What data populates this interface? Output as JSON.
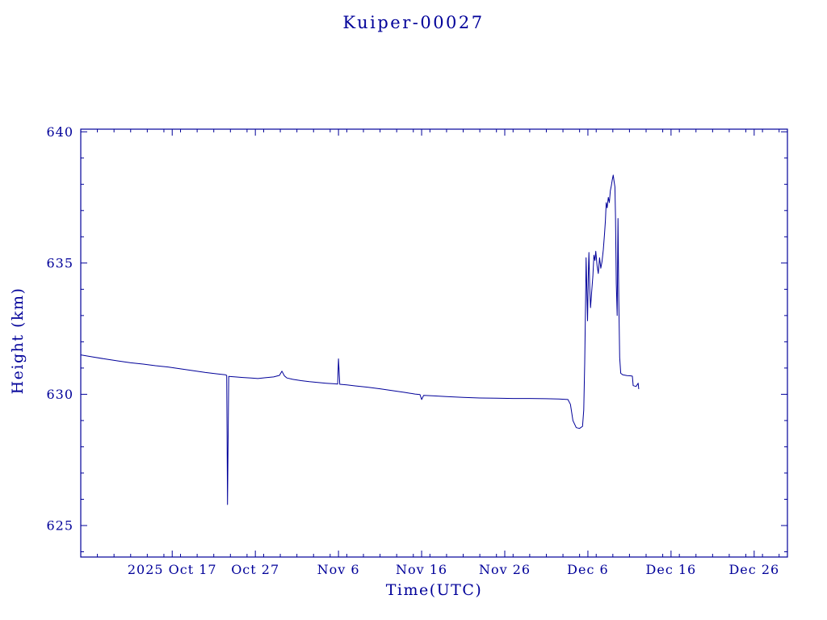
{
  "colors": {
    "axis": "#000099",
    "line": "#000099",
    "background": "#ffffff"
  },
  "chart_data": {
    "type": "line",
    "title": "Kuiper-00027",
    "xlabel": "Time(UTC)",
    "ylabel": "Height (km)",
    "x_axis_note": "x positions are day offsets; day 11 = 2025 Oct 17, 10 days per major tick",
    "xlim": [
      0,
      85
    ],
    "ylim": [
      623.8,
      640.1
    ],
    "x_ticks": [
      {
        "pos": 11,
        "label": "2025 Oct 17"
      },
      {
        "pos": 21,
        "label": "Oct 27"
      },
      {
        "pos": 31,
        "label": "Nov 6"
      },
      {
        "pos": 41,
        "label": "Nov 16"
      },
      {
        "pos": 51,
        "label": "Nov 26"
      },
      {
        "pos": 61,
        "label": "Dec 6"
      },
      {
        "pos": 71,
        "label": "Dec 16"
      },
      {
        "pos": 81,
        "label": "Dec 26"
      }
    ],
    "x_minor_interval": 2,
    "y_ticks": [
      {
        "pos": 625,
        "label": "625"
      },
      {
        "pos": 630,
        "label": "630"
      },
      {
        "pos": 635,
        "label": "635"
      },
      {
        "pos": 640,
        "label": "640"
      }
    ],
    "y_minor_interval": 1,
    "grid": false,
    "legend": false,
    "series": [
      {
        "name": "height_km",
        "points": [
          [
            0,
            631.5
          ],
          [
            1.5,
            631.42
          ],
          [
            3,
            631.34
          ],
          [
            4.5,
            631.27
          ],
          [
            6,
            631.2
          ],
          [
            7.5,
            631.15
          ],
          [
            9,
            631.09
          ],
          [
            10.5,
            631.04
          ],
          [
            12,
            630.97
          ],
          [
            13.5,
            630.9
          ],
          [
            15,
            630.83
          ],
          [
            16.3,
            630.78
          ],
          [
            17.4,
            630.74
          ],
          [
            17.55,
            630.72
          ],
          [
            17.65,
            625.8
          ],
          [
            17.8,
            630.68
          ],
          [
            18.6,
            630.66
          ],
          [
            19.5,
            630.64
          ],
          [
            20.5,
            630.62
          ],
          [
            21.3,
            630.6
          ],
          [
            22.2,
            630.63
          ],
          [
            23.2,
            630.66
          ],
          [
            23.9,
            630.72
          ],
          [
            24.2,
            630.88
          ],
          [
            24.5,
            630.7
          ],
          [
            24.8,
            630.62
          ],
          [
            25.5,
            630.57
          ],
          [
            26.5,
            630.52
          ],
          [
            27.5,
            630.48
          ],
          [
            28.5,
            630.45
          ],
          [
            29.5,
            630.42
          ],
          [
            30.5,
            630.4
          ],
          [
            30.9,
            630.39
          ],
          [
            31.0,
            631.35
          ],
          [
            31.15,
            630.38
          ],
          [
            32,
            630.36
          ],
          [
            33,
            630.32
          ],
          [
            34.5,
            630.27
          ],
          [
            36,
            630.21
          ],
          [
            37.5,
            630.14
          ],
          [
            39,
            630.07
          ],
          [
            40.2,
            630.01
          ],
          [
            40.8,
            629.99
          ],
          [
            41.0,
            629.8
          ],
          [
            41.25,
            629.96
          ],
          [
            42.5,
            629.94
          ],
          [
            44,
            629.91
          ],
          [
            46,
            629.88
          ],
          [
            48,
            629.86
          ],
          [
            50,
            629.85
          ],
          [
            52,
            629.84
          ],
          [
            54,
            629.84
          ],
          [
            56,
            629.83
          ],
          [
            57.5,
            629.82
          ],
          [
            58.6,
            629.8
          ],
          [
            58.9,
            629.62
          ],
          [
            59.2,
            629.0
          ],
          [
            59.6,
            628.73
          ],
          [
            60.0,
            628.7
          ],
          [
            60.35,
            628.78
          ],
          [
            60.5,
            629.4
          ],
          [
            60.62,
            631.2
          ],
          [
            60.72,
            633.6
          ],
          [
            60.78,
            635.2
          ],
          [
            60.88,
            633.9
          ],
          [
            60.96,
            632.8
          ],
          [
            61.05,
            634.6
          ],
          [
            61.12,
            635.4
          ],
          [
            61.22,
            634.1
          ],
          [
            61.32,
            633.3
          ],
          [
            61.45,
            633.9
          ],
          [
            61.6,
            634.5
          ],
          [
            61.72,
            635.3
          ],
          [
            61.85,
            635.1
          ],
          [
            61.95,
            635.45
          ],
          [
            62.1,
            634.9
          ],
          [
            62.25,
            634.6
          ],
          [
            62.4,
            635.2
          ],
          [
            62.55,
            634.8
          ],
          [
            62.7,
            635.05
          ],
          [
            62.85,
            635.5
          ],
          [
            63.0,
            636.1
          ],
          [
            63.1,
            636.6
          ],
          [
            63.2,
            637.3
          ],
          [
            63.32,
            637.1
          ],
          [
            63.45,
            637.5
          ],
          [
            63.58,
            637.3
          ],
          [
            63.7,
            637.75
          ],
          [
            63.82,
            637.95
          ],
          [
            63.92,
            638.15
          ],
          [
            64.05,
            638.35
          ],
          [
            64.15,
            638.1
          ],
          [
            64.25,
            637.9
          ],
          [
            64.32,
            636.8
          ],
          [
            64.42,
            634.2
          ],
          [
            64.52,
            633.0
          ],
          [
            64.62,
            636.7
          ],
          [
            64.72,
            633.6
          ],
          [
            64.82,
            631.4
          ],
          [
            64.95,
            630.8
          ],
          [
            65.2,
            630.74
          ],
          [
            65.7,
            630.71
          ],
          [
            66.2,
            630.7
          ],
          [
            66.35,
            630.69
          ],
          [
            66.45,
            630.33
          ],
          [
            66.8,
            630.3
          ],
          [
            67.05,
            630.42
          ],
          [
            67.12,
            630.2
          ]
        ]
      }
    ]
  }
}
